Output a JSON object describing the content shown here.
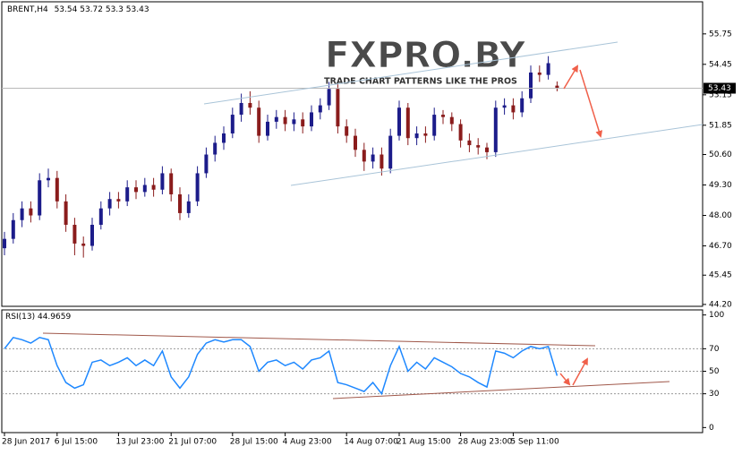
{
  "chart_data": [
    {
      "type": "candlestick",
      "symbol": "BRENT,H4",
      "logo": "FXPRO.BY",
      "tagline": "TRADE CHART PATTERNS LIKE THE PROS",
      "categories": [
        "28 Jun 2017",
        null,
        null,
        null,
        null,
        null,
        "6 Jul 15:00",
        null,
        null,
        null,
        null,
        null,
        null,
        "13 Jul 23:00",
        null,
        null,
        null,
        null,
        null,
        "21 Jul 07:00",
        null,
        null,
        null,
        null,
        null,
        null,
        "28 Jul 15:00",
        null,
        null,
        null,
        null,
        null,
        "4 Aug 23:00",
        null,
        null,
        null,
        null,
        null,
        null,
        "14 Aug 07:00",
        null,
        null,
        null,
        null,
        null,
        "21 Aug 15:00",
        null,
        null,
        null,
        null,
        null,
        null,
        "28 Aug 23:00",
        null,
        null,
        null,
        null,
        null,
        "5 Sep 11:00",
        null,
        null,
        null,
        null,
        null
      ],
      "open": [
        46.6,
        47.0,
        47.8,
        48.3,
        48.0,
        49.5,
        49.6,
        48.6,
        47.6,
        46.8,
        46.7,
        47.6,
        48.3,
        48.7,
        48.6,
        49.2,
        49.0,
        49.3,
        49.1,
        49.8,
        48.9,
        48.1,
        48.6,
        49.8,
        50.6,
        51.1,
        51.5,
        52.3,
        52.8,
        52.6,
        51.4,
        52.0,
        52.2,
        51.9,
        52.1,
        51.8,
        52.4,
        52.7,
        53.4,
        51.8,
        51.4,
        50.8,
        50.3,
        50.6,
        50.0,
        51.4,
        52.6,
        51.3,
        51.5,
        51.4,
        52.3,
        52.2,
        51.9,
        51.2,
        51.0,
        50.9,
        50.7,
        52.6,
        52.7,
        52.4,
        53.0,
        54.1,
        54.0,
        53.54
      ],
      "high": [
        47.3,
        48.1,
        48.6,
        48.6,
        49.8,
        50.0,
        49.9,
        48.9,
        47.9,
        47.1,
        47.9,
        48.6,
        49.0,
        49.0,
        49.5,
        49.5,
        49.6,
        49.6,
        50.1,
        50.0,
        49.2,
        48.9,
        50.1,
        50.9,
        51.4,
        51.8,
        52.6,
        53.2,
        53.3,
        52.9,
        52.3,
        52.5,
        52.5,
        52.4,
        52.4,
        52.7,
        53.0,
        53.7,
        53.6,
        52.1,
        51.7,
        51.1,
        50.9,
        50.9,
        51.7,
        52.9,
        52.8,
        51.8,
        51.8,
        52.6,
        52.5,
        52.4,
        52.1,
        51.5,
        51.3,
        51.1,
        52.9,
        53.0,
        53.0,
        53.3,
        54.4,
        54.4,
        54.8,
        53.72
      ],
      "low": [
        46.3,
        46.8,
        47.5,
        47.7,
        47.8,
        49.2,
        48.3,
        47.3,
        46.3,
        46.2,
        46.5,
        47.4,
        48.0,
        48.3,
        48.4,
        48.7,
        48.8,
        48.8,
        48.9,
        48.6,
        47.8,
        47.9,
        48.4,
        49.6,
        50.3,
        50.8,
        51.3,
        52.0,
        52.3,
        51.1,
        51.2,
        51.7,
        51.6,
        51.6,
        51.5,
        51.6,
        52.1,
        52.5,
        51.5,
        51.1,
        50.5,
        49.9,
        50.0,
        49.7,
        49.8,
        51.2,
        51.0,
        51.0,
        51.1,
        51.2,
        51.9,
        51.6,
        50.9,
        50.7,
        50.6,
        50.4,
        50.5,
        52.3,
        52.1,
        52.2,
        52.8,
        53.7,
        53.8,
        53.3
      ],
      "close": [
        47.0,
        47.8,
        48.3,
        48.0,
        49.5,
        49.6,
        48.6,
        47.6,
        46.8,
        46.7,
        47.6,
        48.3,
        48.7,
        48.6,
        49.2,
        49.0,
        49.3,
        49.1,
        49.8,
        48.9,
        48.1,
        48.6,
        49.8,
        50.6,
        51.1,
        51.5,
        52.3,
        52.8,
        52.6,
        51.4,
        52.0,
        52.2,
        51.9,
        52.1,
        51.8,
        52.4,
        52.7,
        53.4,
        51.8,
        51.4,
        50.8,
        50.3,
        50.6,
        50.0,
        51.4,
        52.6,
        51.3,
        51.5,
        51.4,
        52.3,
        52.2,
        51.9,
        51.2,
        51.0,
        50.9,
        50.7,
        52.6,
        52.7,
        52.4,
        53.0,
        54.1,
        54.0,
        54.5,
        53.43
      ],
      "up_color": "#1c1c8a",
      "down_color": "#8a1c1c",
      "last_price": 53.43,
      "ylim": [
        44.12,
        57.12
      ],
      "yticks": [
        55.75,
        54.45,
        53.15,
        51.85,
        {
          "value": 50.6,
          "label": "50.60"
        },
        {
          "value": 49.3,
          "label": "49.30"
        },
        {
          "value": 48.0,
          "label": "48.00"
        },
        {
          "value": 46.7,
          "label": "46.70"
        },
        45.45,
        {
          "value": 44.2,
          "label": "44.20"
        }
      ]
    },
    {
      "type": "line",
      "name": "RSI(13)",
      "last_value": 44.9659,
      "color": "#1e88ff",
      "values": [
        70,
        80,
        78,
        75,
        80,
        78,
        55,
        40,
        35,
        38,
        58,
        60,
        55,
        58,
        62,
        55,
        60,
        55,
        68,
        45,
        35,
        45,
        65,
        75,
        78,
        76,
        78,
        78,
        72,
        50,
        58,
        60,
        55,
        58,
        52,
        60,
        62,
        68,
        40,
        38,
        35,
        32,
        40,
        30,
        55,
        72,
        50,
        58,
        52,
        62,
        58,
        54,
        48,
        45,
        40,
        36,
        68,
        66,
        62,
        68,
        72,
        70,
        72,
        46
      ],
      "ylim": [
        -4.5,
        104.5
      ],
      "yticks": [
        100,
        70,
        50,
        30,
        0
      ],
      "levels": [
        70,
        50,
        30
      ]
    }
  ]
}
